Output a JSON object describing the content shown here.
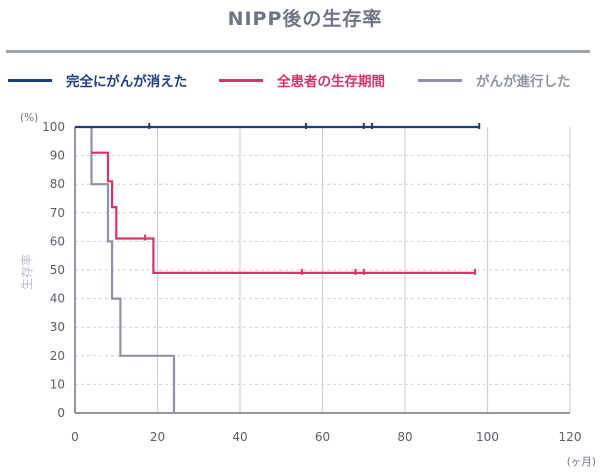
{
  "title": "NIPP後の生存率",
  "colors": {
    "complete": "#1f3f7a",
    "all": "#d6336c",
    "progressed": "#8e93a3",
    "grid": "#cfd2da",
    "axis": "#6f7585",
    "title_rule": "#9ea3b0"
  },
  "chart_data": {
    "type": "line",
    "title": "NIPP後の生存率",
    "ylabel": "生存率",
    "y_unit": "(%)",
    "x_unit": "(ヶ月)",
    "xlim": [
      0,
      120
    ],
    "ylim": [
      0,
      100
    ],
    "xticks": [
      0,
      20,
      40,
      60,
      80,
      100,
      120
    ],
    "yticks": [
      0,
      10,
      20,
      30,
      40,
      50,
      60,
      70,
      80,
      90,
      100
    ],
    "grid": true,
    "legend_position": "top",
    "series": [
      {
        "key": "complete",
        "name": "完全にがんが消えた",
        "step": [
          [
            0,
            100
          ],
          [
            98,
            100
          ]
        ],
        "censors": [
          18,
          56,
          70,
          72,
          98
        ]
      },
      {
        "key": "all",
        "name": "全患者の生存期間",
        "step": [
          [
            4,
            91
          ],
          [
            8,
            91
          ],
          [
            8,
            81
          ],
          [
            9,
            81
          ],
          [
            9,
            72
          ],
          [
            10,
            72
          ],
          [
            10,
            61
          ],
          [
            19,
            61
          ],
          [
            19,
            49
          ],
          [
            97,
            49
          ]
        ],
        "censors": [
          17,
          55,
          68,
          70,
          97
        ]
      },
      {
        "key": "progressed",
        "name": "がんが進行した",
        "step": [
          [
            4,
            100
          ],
          [
            4,
            80
          ],
          [
            8,
            80
          ],
          [
            8,
            60
          ],
          [
            9,
            60
          ],
          [
            9,
            40
          ],
          [
            11,
            40
          ],
          [
            11,
            20
          ],
          [
            24,
            20
          ],
          [
            24,
            0
          ]
        ],
        "censors": []
      }
    ]
  }
}
